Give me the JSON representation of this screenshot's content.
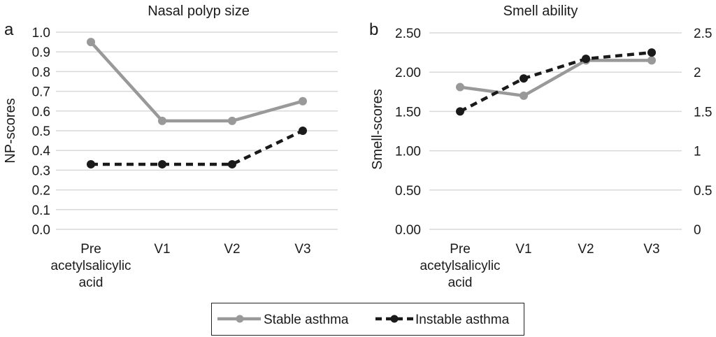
{
  "chart_data": [
    {
      "type": "line",
      "panel_label": "a",
      "title": "Nasal polyp size",
      "xlabel": "",
      "ylabel": "NP-scores",
      "categories": [
        "Pre acetylsalicylic acid",
        "V1",
        "V2",
        "V3"
      ],
      "category_lines": [
        [
          "Pre",
          "acetylsalicylic",
          "acid"
        ],
        [
          "V1"
        ],
        [
          "V2"
        ],
        [
          "V3"
        ]
      ],
      "ylim": [
        0,
        1.0
      ],
      "yticks": [
        "0.0",
        "0.1",
        "0.2",
        "0.3",
        "0.4",
        "0.5",
        "0.6",
        "0.7",
        "0.8",
        "0.9",
        "1.0"
      ],
      "grid": true,
      "series": [
        {
          "name": "Stable asthma",
          "values": [
            0.95,
            0.55,
            0.55,
            0.65
          ],
          "color": "#999999",
          "style": "solid"
        },
        {
          "name": "Instable asthma",
          "values": [
            0.33,
            0.33,
            0.33,
            0.5
          ],
          "color": "#1a1a1a",
          "style": "dashed"
        }
      ]
    },
    {
      "type": "line",
      "panel_label": "b",
      "title": "Smell ability",
      "xlabel": "",
      "ylabel": "Smell-scores",
      "categories": [
        "Pre acetylsalicylic acid",
        "V1",
        "V2",
        "V3"
      ],
      "category_lines": [
        [
          "Pre",
          "acetylsalicylic",
          "acid"
        ],
        [
          "V1"
        ],
        [
          "V2"
        ],
        [
          "V3"
        ]
      ],
      "ylim": [
        0,
        2.5
      ],
      "yticks": [
        "0.00",
        "0.50",
        "1.00",
        "1.50",
        "2.00",
        "2.50"
      ],
      "yticks_right": [
        "0",
        "0.5",
        "1",
        "1.5",
        "2",
        "2.5"
      ],
      "grid": true,
      "series": [
        {
          "name": "Stable asthma",
          "values": [
            1.81,
            1.7,
            2.15,
            2.15
          ],
          "color": "#999999",
          "style": "solid"
        },
        {
          "name": "Instable asthma",
          "values": [
            1.5,
            1.92,
            2.17,
            2.25
          ],
          "color": "#1a1a1a",
          "style": "dashed"
        }
      ]
    }
  ],
  "legend": {
    "placement": "bottom-center",
    "items": [
      {
        "label": "Stable asthma",
        "color": "#999999",
        "style": "solid"
      },
      {
        "label": "Instable asthma",
        "color": "#1a1a1a",
        "style": "dashed"
      }
    ]
  }
}
